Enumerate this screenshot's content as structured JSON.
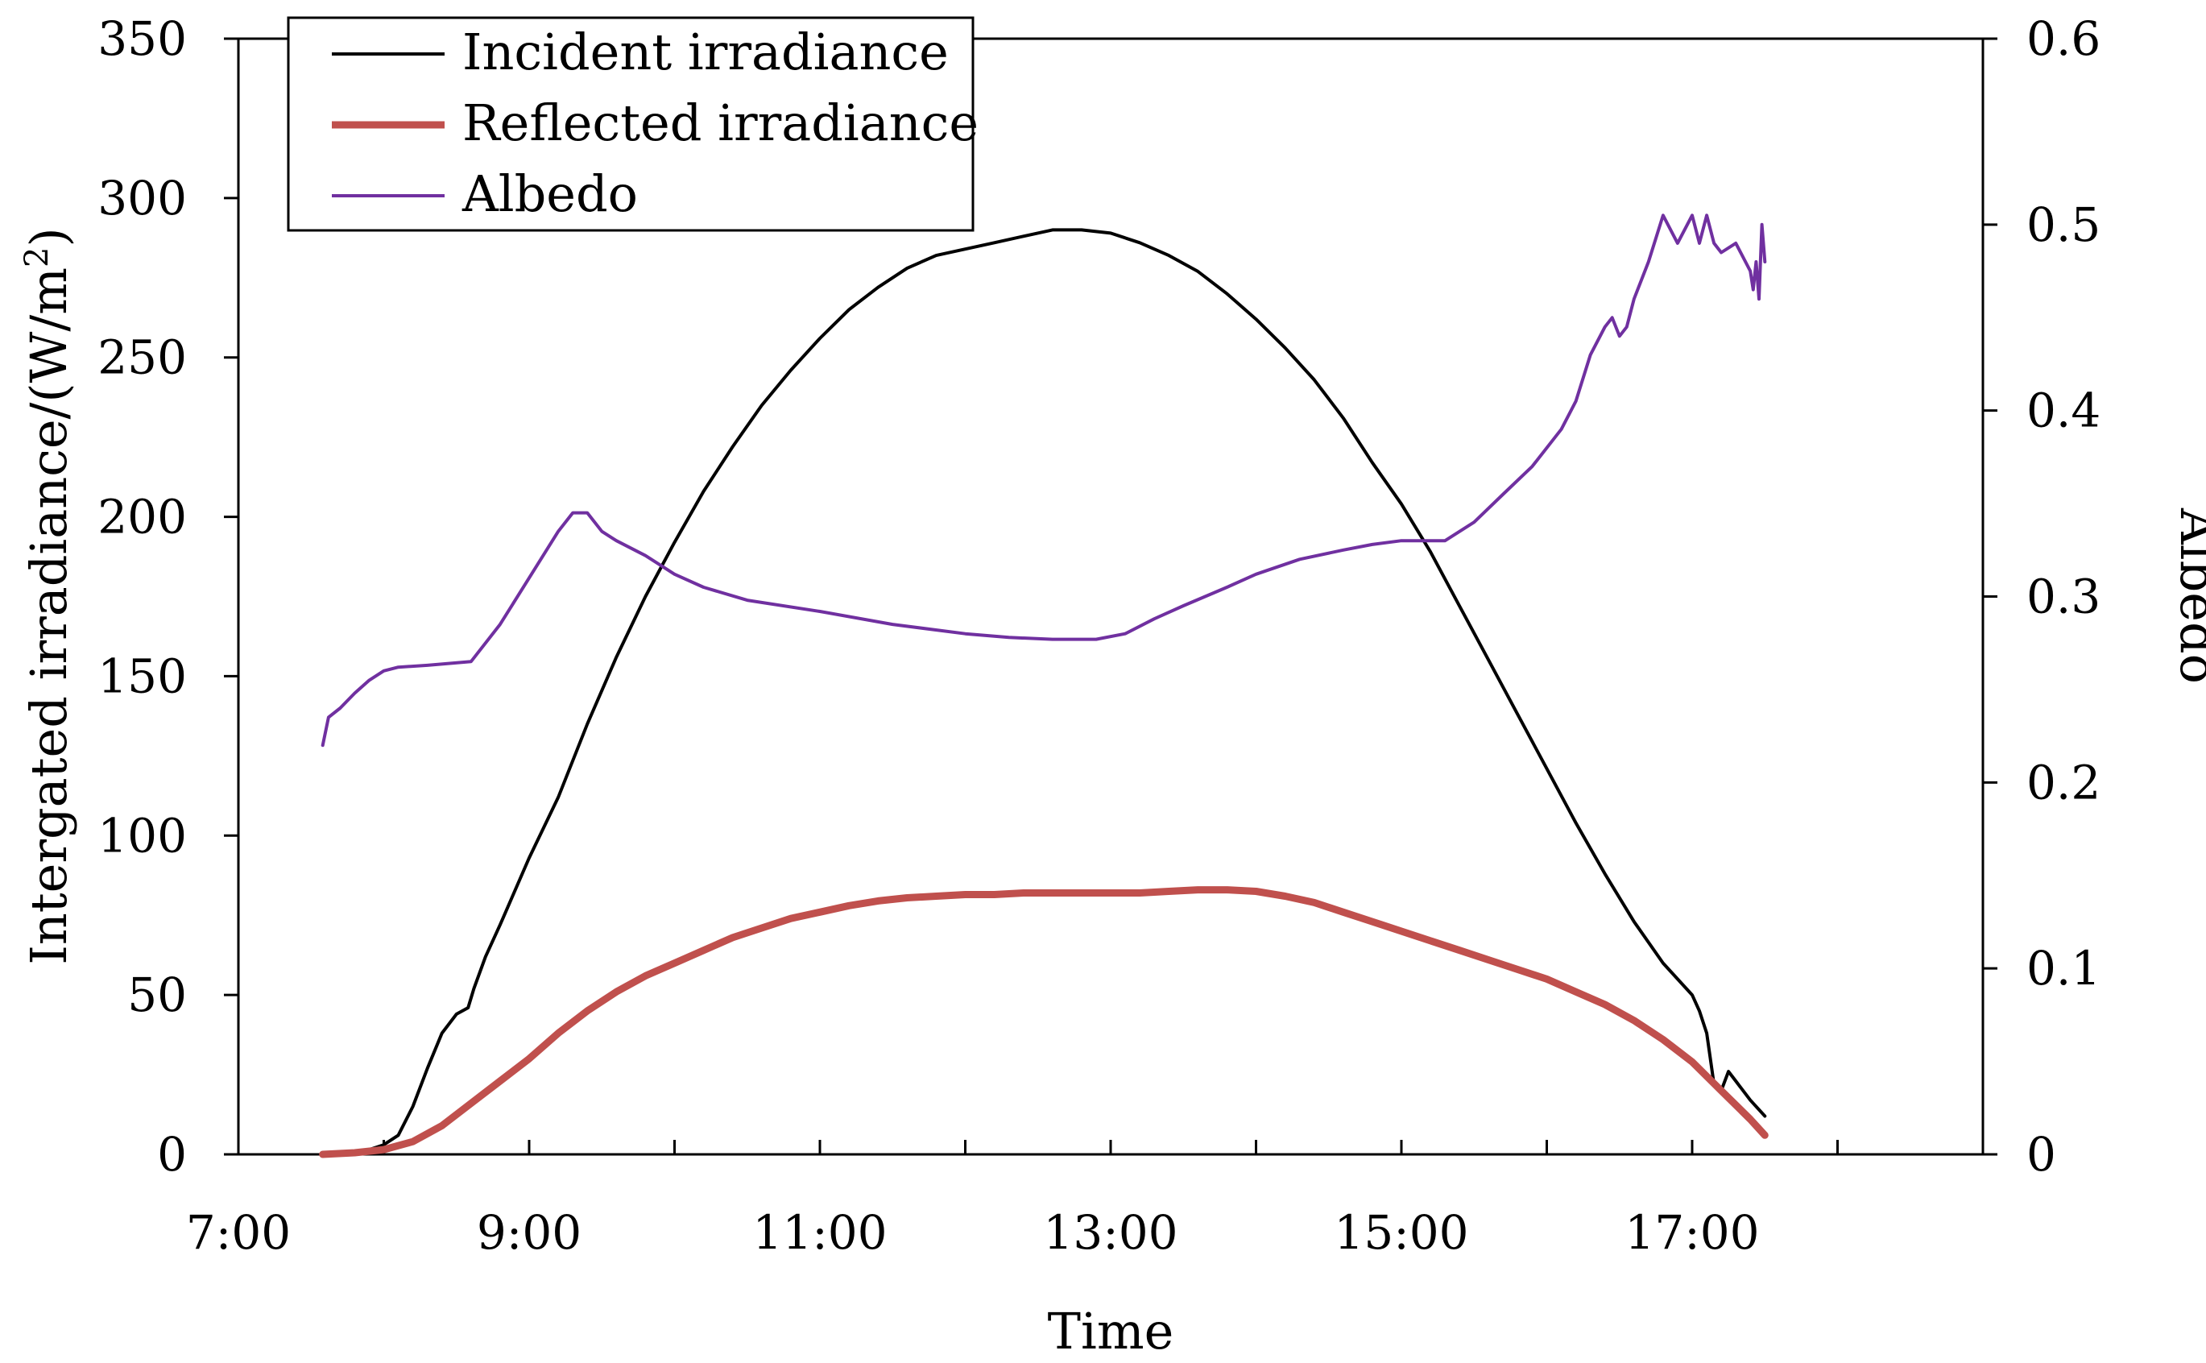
{
  "chart_data": {
    "type": "line",
    "xlabel": "Time",
    "ylabel_left": {
      "text": "Intergated irradiance/(W/m",
      "superscript": "2",
      "closing": ")"
    },
    "ylabel_right": "Albedo",
    "x_range_hours": [
      7,
      19
    ],
    "x_tick_hours": [
      7,
      9,
      11,
      13,
      15,
      17
    ],
    "x_tick_labels": [
      "7:00",
      "9:00",
      "11:00",
      "13:00",
      "15:00",
      "17:00"
    ],
    "ylim_left": [
      0,
      350
    ],
    "y_left_ticks": [
      "0",
      "50",
      "100",
      "150",
      "200",
      "250",
      "300",
      "350"
    ],
    "ylim_right": [
      0,
      0.6
    ],
    "y_right_ticks": [
      "0",
      "0.1",
      "0.2",
      "0.3",
      "0.4",
      "0.5",
      "0.6"
    ],
    "legend_position": "top-left",
    "series": [
      {
        "name": "Incident irradiance",
        "axis": "left",
        "color": "#000000",
        "x": [
          7.58,
          7.75,
          7.9,
          8.0,
          8.1,
          8.2,
          8.3,
          8.4,
          8.5,
          8.58,
          8.62,
          8.7,
          8.8,
          9.0,
          9.2,
          9.4,
          9.6,
          9.8,
          10.0,
          10.2,
          10.4,
          10.6,
          10.8,
          11.0,
          11.2,
          11.4,
          11.6,
          11.8,
          12.0,
          12.2,
          12.4,
          12.6,
          12.8,
          13.0,
          13.2,
          13.4,
          13.6,
          13.8,
          14.0,
          14.2,
          14.4,
          14.6,
          14.8,
          15.0,
          15.2,
          15.4,
          15.6,
          15.8,
          16.0,
          16.2,
          16.4,
          16.6,
          16.8,
          17.0,
          17.05,
          17.1,
          17.15,
          17.2,
          17.25,
          17.3,
          17.4,
          17.5
        ],
        "values": [
          0,
          0.5,
          1.5,
          3,
          6,
          15,
          27,
          38,
          44,
          46,
          52,
          62,
          72,
          93,
          112,
          135,
          156,
          175,
          192,
          208,
          222,
          235,
          246,
          256,
          265,
          272,
          278,
          282,
          284,
          286,
          288,
          290,
          290,
          289,
          286,
          282,
          277,
          270,
          262,
          253,
          243,
          231,
          217,
          204,
          189,
          172,
          155,
          138,
          121,
          104,
          88,
          73,
          60,
          50,
          45,
          38,
          22,
          20,
          26,
          23,
          17,
          12
        ]
      },
      {
        "name": "Reflected irradiance",
        "axis": "left",
        "color": "#c0504d",
        "x": [
          7.58,
          7.8,
          8.0,
          8.2,
          8.4,
          8.6,
          8.8,
          9.0,
          9.2,
          9.4,
          9.6,
          9.8,
          10.0,
          10.2,
          10.4,
          10.6,
          10.8,
          11.0,
          11.2,
          11.4,
          11.6,
          11.8,
          12.0,
          12.2,
          12.4,
          12.6,
          12.8,
          13.0,
          13.2,
          13.4,
          13.6,
          13.8,
          14.0,
          14.2,
          14.4,
          14.6,
          14.8,
          15.0,
          15.2,
          15.4,
          15.6,
          15.8,
          16.0,
          16.2,
          16.4,
          16.6,
          16.8,
          17.0,
          17.2,
          17.4,
          17.5
        ],
        "values": [
          0,
          0.5,
          1.5,
          4,
          9,
          16,
          23,
          30,
          38,
          45,
          51,
          56,
          60,
          64,
          68,
          71,
          74,
          76,
          78,
          79.5,
          80.5,
          81,
          81.5,
          81.5,
          82,
          82,
          82,
          82,
          82,
          82.5,
          83,
          83,
          82.5,
          81,
          79,
          76,
          73,
          70,
          67,
          64,
          61,
          58,
          55,
          51,
          47,
          42,
          36,
          29,
          20,
          11,
          6
        ]
      },
      {
        "name": "Albedo",
        "axis": "right",
        "color": "#7030a0",
        "x": [
          7.58,
          7.62,
          7.7,
          7.8,
          7.9,
          8.0,
          8.1,
          8.3,
          8.6,
          8.8,
          9.0,
          9.2,
          9.3,
          9.4,
          9.5,
          9.6,
          9.8,
          10.0,
          10.2,
          10.5,
          11.0,
          11.5,
          12.0,
          12.3,
          12.6,
          12.9,
          13.1,
          13.3,
          13.5,
          13.8,
          14.0,
          14.3,
          14.6,
          14.8,
          15.0,
          15.1,
          15.3,
          15.5,
          15.7,
          15.9,
          16.1,
          16.2,
          16.3,
          16.4,
          16.45,
          16.5,
          16.55,
          16.6,
          16.7,
          16.8,
          16.9,
          17.0,
          17.05,
          17.1,
          17.15,
          17.2,
          17.3,
          17.4,
          17.42,
          17.44,
          17.46,
          17.48,
          17.5
        ],
        "values": [
          0.22,
          0.235,
          0.24,
          0.248,
          0.255,
          0.26,
          0.262,
          0.263,
          0.265,
          0.285,
          0.31,
          0.335,
          0.345,
          0.345,
          0.335,
          0.33,
          0.322,
          0.312,
          0.305,
          0.298,
          0.292,
          0.285,
          0.28,
          0.278,
          0.277,
          0.277,
          0.28,
          0.288,
          0.295,
          0.305,
          0.312,
          0.32,
          0.325,
          0.328,
          0.33,
          0.33,
          0.33,
          0.34,
          0.355,
          0.37,
          0.39,
          0.405,
          0.43,
          0.445,
          0.45,
          0.44,
          0.445,
          0.46,
          0.48,
          0.505,
          0.49,
          0.505,
          0.49,
          0.505,
          0.49,
          0.485,
          0.49,
          0.475,
          0.465,
          0.48,
          0.46,
          0.5,
          0.48
        ]
      }
    ]
  }
}
